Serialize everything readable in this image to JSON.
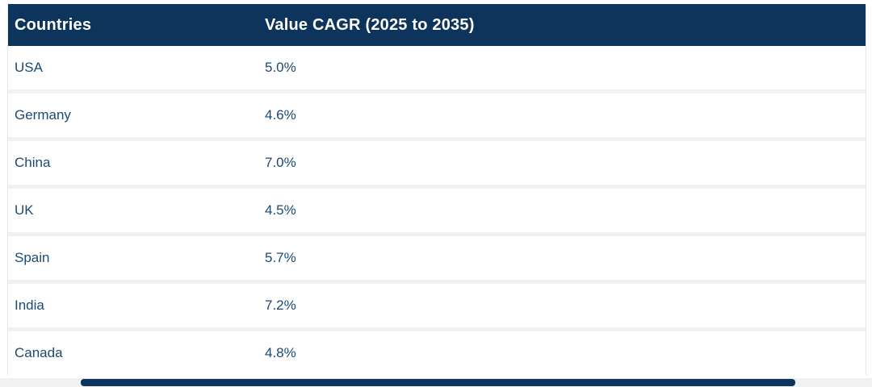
{
  "chart_data": {
    "type": "table",
    "title": "Value CAGR (2025 to 2035)",
    "columns": [
      "Countries",
      "Value CAGR (2025 to 2035)"
    ],
    "categories": [
      "USA",
      "Germany",
      "China",
      "UK",
      "Spain",
      "India",
      "Canada"
    ],
    "values": [
      5.0,
      4.6,
      7.0,
      4.5,
      5.7,
      7.2,
      4.8
    ],
    "value_labels": [
      "5.0%",
      "4.6%",
      "7.0%",
      "4.5%",
      "5.7%",
      "7.2%",
      "4.8%"
    ]
  },
  "table": {
    "header": {
      "countries": "Countries",
      "value_cagr": "Value CAGR (2025 to 2035)"
    },
    "rows": [
      {
        "country": "USA",
        "value": "5.0%"
      },
      {
        "country": "Germany",
        "value": "4.6%"
      },
      {
        "country": "China",
        "value": "7.0%"
      },
      {
        "country": "UK",
        "value": "4.5%"
      },
      {
        "country": "Spain",
        "value": "5.7%"
      },
      {
        "country": "India",
        "value": "7.2%"
      },
      {
        "country": "Canada",
        "value": "4.8%"
      }
    ]
  },
  "colors": {
    "header_bg": "#0d345c",
    "header_text": "#ffffff",
    "row_bg": "#ffffff",
    "row_text": "#1b4973",
    "row_separator": "#f0f1f3",
    "side_border": "#e4e5ea",
    "scrollbar_track": "#f1f1f4",
    "scrollbar_thumb": "#0d345c"
  }
}
